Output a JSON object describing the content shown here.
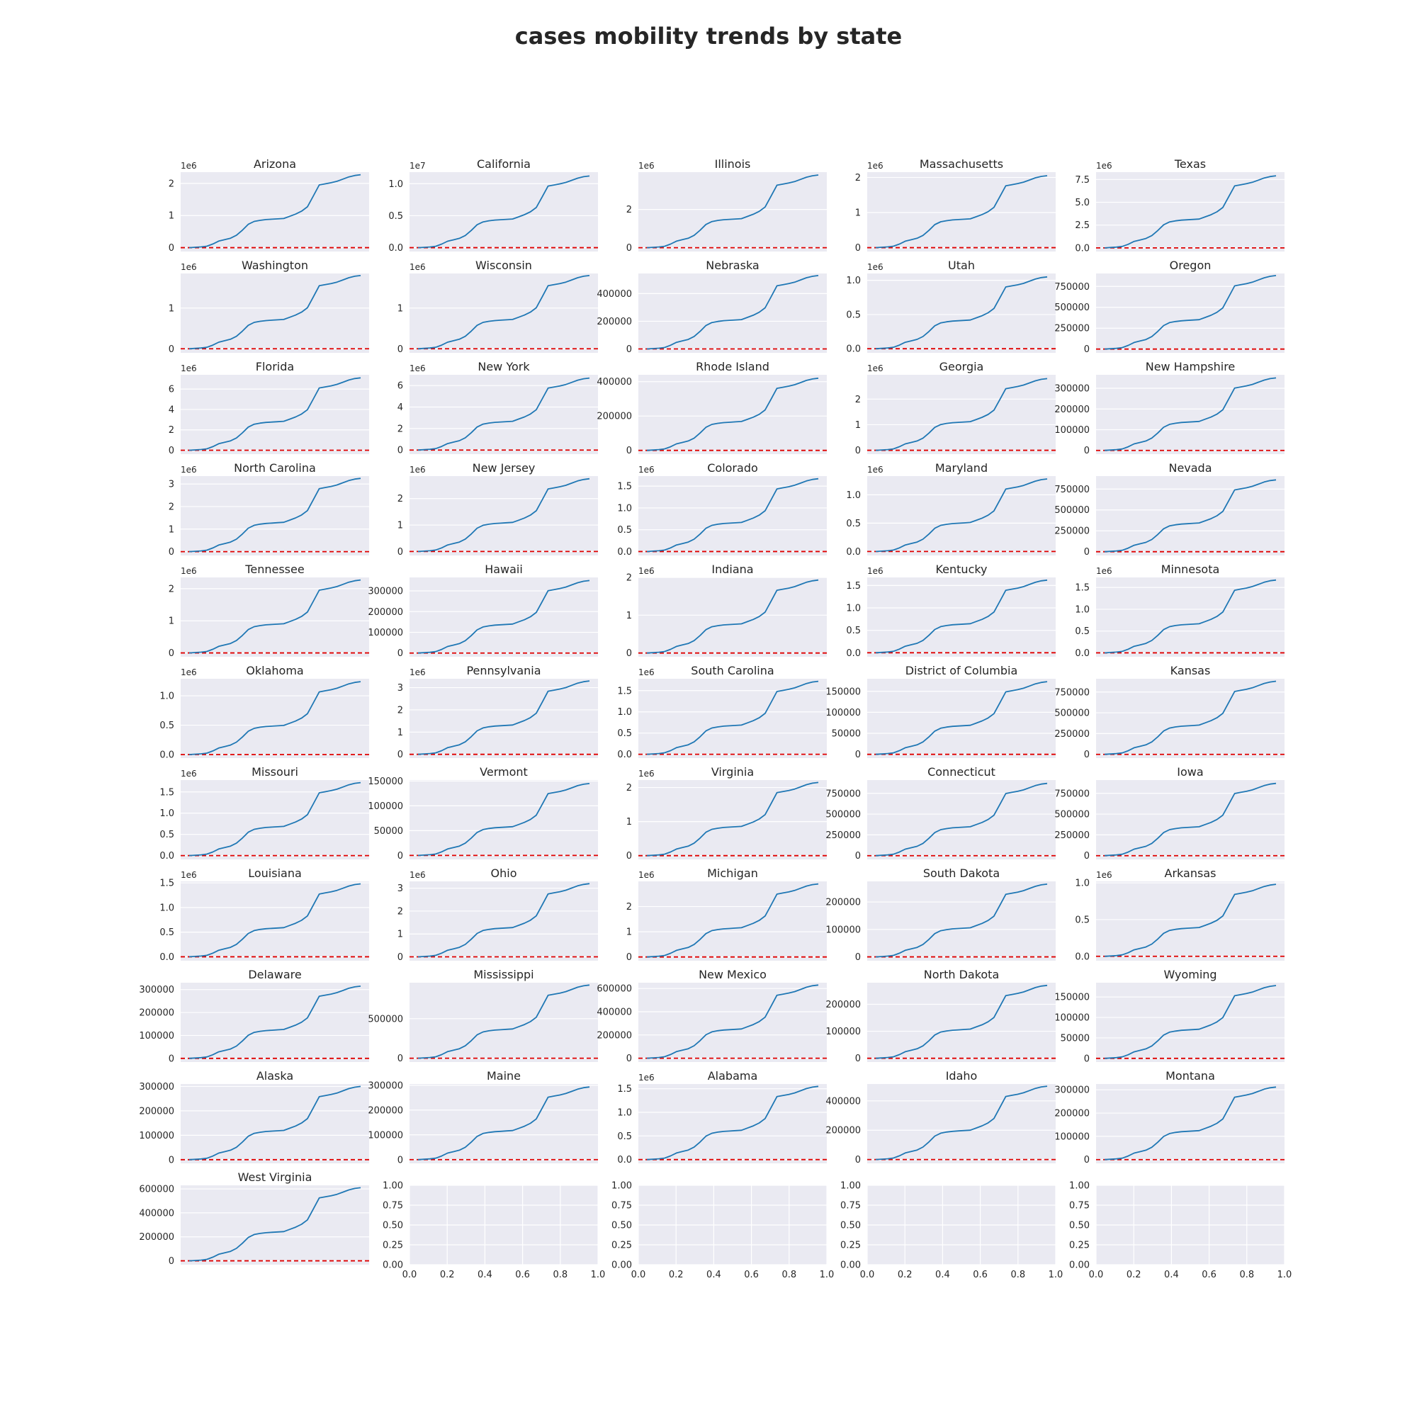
{
  "title": "cases mobility trends by state",
  "chart_data": {
    "type": "line",
    "layout": "small-multiples-grid",
    "grid": true,
    "reference_line": {
      "y": 0,
      "color": "#e00000",
      "style": "dashed"
    },
    "line_color": "#1f77b4",
    "panels": [
      {
        "title": "Arizona",
        "multiplier": "1e6",
        "yticks": [
          "0",
          "1",
          "2"
        ],
        "tick_values": [
          0,
          1,
          2
        ],
        "ylim": [
          -0.12,
          2.35
        ],
        "final": 2.27
      },
      {
        "title": "California",
        "multiplier": "1e7",
        "yticks": [
          "0.0",
          "0.5",
          "1.0"
        ],
        "tick_values": [
          0,
          0.5,
          1.0
        ],
        "ylim": [
          -0.06,
          1.18
        ],
        "final": 1.12
      },
      {
        "title": "Illinois",
        "multiplier": "1e6",
        "yticks": [
          "0",
          "2"
        ],
        "tick_values": [
          0,
          2
        ],
        "ylim": [
          -0.2,
          3.95
        ],
        "final": 3.8
      },
      {
        "title": "Massachusetts",
        "multiplier": "1e6",
        "yticks": [
          "0",
          "1",
          "2"
        ],
        "tick_values": [
          0,
          1,
          2
        ],
        "ylim": [
          -0.11,
          2.15
        ],
        "final": 2.05
      },
      {
        "title": "Texas",
        "multiplier": "1e6",
        "yticks": [
          "0.0",
          "2.5",
          "5.0",
          "7.5"
        ],
        "tick_values": [
          0,
          2.5,
          5.0,
          7.5
        ],
        "ylim": [
          -0.4,
          8.3
        ],
        "final": 7.9
      },
      {
        "title": "Washington",
        "multiplier": "1e6",
        "yticks": [
          "0",
          "1"
        ],
        "tick_values": [
          0,
          1
        ],
        "ylim": [
          -0.1,
          1.85
        ],
        "final": 1.8
      },
      {
        "title": "Wisconsin",
        "multiplier": "1e6",
        "yticks": [
          "0",
          "1"
        ],
        "tick_values": [
          0,
          1
        ],
        "ylim": [
          -0.1,
          1.85
        ],
        "final": 1.8
      },
      {
        "title": "Nebraska",
        "multiplier": "",
        "yticks": [
          "0",
          "200000",
          "400000"
        ],
        "tick_values": [
          0,
          200000,
          400000
        ],
        "ylim": [
          -28000,
          545000
        ],
        "final": 530000
      },
      {
        "title": "Utah",
        "multiplier": "1e6",
        "yticks": [
          "0.0",
          "0.5",
          "1.0"
        ],
        "tick_values": [
          0,
          0.5,
          1.0
        ],
        "ylim": [
          -0.06,
          1.1
        ],
        "final": 1.05
      },
      {
        "title": "Oregon",
        "multiplier": "",
        "yticks": [
          "0",
          "250000",
          "500000",
          "750000"
        ],
        "tick_values": [
          0,
          250000,
          500000,
          750000
        ],
        "ylim": [
          -45000,
          905000
        ],
        "final": 880000
      },
      {
        "title": "Florida",
        "multiplier": "1e6",
        "yticks": [
          "0",
          "2",
          "4",
          "6"
        ],
        "tick_values": [
          0,
          2,
          4,
          6
        ],
        "ylim": [
          -0.38,
          7.4
        ],
        "final": 7.1
      },
      {
        "title": "New York",
        "multiplier": "1e6",
        "yticks": [
          "0",
          "2",
          "4",
          "6"
        ],
        "tick_values": [
          0,
          2,
          4,
          6
        ],
        "ylim": [
          -0.38,
          7.0
        ],
        "final": 6.7
      },
      {
        "title": "Rhode Island",
        "multiplier": "",
        "yticks": [
          "0",
          "200000",
          "400000"
        ],
        "tick_values": [
          0,
          200000,
          400000
        ],
        "ylim": [
          -22000,
          440000
        ],
        "final": 420000
      },
      {
        "title": "Georgia",
        "multiplier": "1e6",
        "yticks": [
          "0",
          "1",
          "2"
        ],
        "tick_values": [
          0,
          1,
          2
        ],
        "ylim": [
          -0.15,
          2.95
        ],
        "final": 2.8
      },
      {
        "title": "New Hampshire",
        "multiplier": "",
        "yticks": [
          "0",
          "100000",
          "200000",
          "300000"
        ],
        "tick_values": [
          0,
          100000,
          200000,
          300000
        ],
        "ylim": [
          -18000,
          365000
        ],
        "final": 350000
      },
      {
        "title": "North Carolina",
        "multiplier": "1e6",
        "yticks": [
          "0",
          "1",
          "2",
          "3"
        ],
        "tick_values": [
          0,
          1,
          2,
          3
        ],
        "ylim": [
          -0.17,
          3.35
        ],
        "final": 3.25
      },
      {
        "title": "New Jersey",
        "multiplier": "1e6",
        "yticks": [
          "0",
          "1",
          "2"
        ],
        "tick_values": [
          0,
          1,
          2
        ],
        "ylim": [
          -0.15,
          2.85
        ],
        "final": 2.75
      },
      {
        "title": "Colorado",
        "multiplier": "1e6",
        "yticks": [
          "0.0",
          "0.5",
          "1.0",
          "1.5"
        ],
        "tick_values": [
          0,
          0.5,
          1.0,
          1.5
        ],
        "ylim": [
          -0.09,
          1.73
        ],
        "final": 1.67
      },
      {
        "title": "Maryland",
        "multiplier": "1e6",
        "yticks": [
          "0.0",
          "0.5",
          "1.0"
        ],
        "tick_values": [
          0,
          0.5,
          1.0
        ],
        "ylim": [
          -0.07,
          1.33
        ],
        "final": 1.28
      },
      {
        "title": "Nevada",
        "multiplier": "",
        "yticks": [
          "0",
          "250000",
          "500000",
          "750000"
        ],
        "tick_values": [
          0,
          250000,
          500000,
          750000
        ],
        "ylim": [
          -45000,
          905000
        ],
        "final": 860000
      },
      {
        "title": "Tennessee",
        "multiplier": "1e6",
        "yticks": [
          "0",
          "1",
          "2"
        ],
        "tick_values": [
          0,
          1,
          2
        ],
        "ylim": [
          -0.12,
          2.35
        ],
        "final": 2.27
      },
      {
        "title": "Hawaii",
        "multiplier": "",
        "yticks": [
          "0",
          "100000",
          "200000",
          "300000"
        ],
        "tick_values": [
          0,
          100000,
          200000,
          300000
        ],
        "ylim": [
          -18000,
          365000
        ],
        "final": 350000
      },
      {
        "title": "Indiana",
        "multiplier": "1e6",
        "yticks": [
          "0",
          "1",
          "2"
        ],
        "tick_values": [
          0,
          1,
          2
        ],
        "ylim": [
          -0.1,
          2.0
        ],
        "final": 1.93
      },
      {
        "title": "Kentucky",
        "multiplier": "1e6",
        "yticks": [
          "0.0",
          "0.5",
          "1.0",
          "1.5"
        ],
        "tick_values": [
          0,
          0.5,
          1.0,
          1.5
        ],
        "ylim": [
          -0.09,
          1.68
        ],
        "final": 1.62
      },
      {
        "title": "Minnesota",
        "multiplier": "1e6",
        "yticks": [
          "0.0",
          "0.5",
          "1.0",
          "1.5"
        ],
        "tick_values": [
          0,
          0.5,
          1.0,
          1.5
        ],
        "ylim": [
          -0.09,
          1.73
        ],
        "final": 1.67
      },
      {
        "title": "Oklahoma",
        "multiplier": "1e6",
        "yticks": [
          "0.0",
          "0.5",
          "1.0"
        ],
        "tick_values": [
          0,
          0.5,
          1.0
        ],
        "ylim": [
          -0.06,
          1.29
        ],
        "final": 1.24
      },
      {
        "title": "Pennsylvania",
        "multiplier": "1e6",
        "yticks": [
          "0",
          "1",
          "2",
          "3"
        ],
        "tick_values": [
          0,
          1,
          2,
          3
        ],
        "ylim": [
          -0.17,
          3.4
        ],
        "final": 3.3
      },
      {
        "title": "South Carolina",
        "multiplier": "1e6",
        "yticks": [
          "0.0",
          "0.5",
          "1.0",
          "1.5"
        ],
        "tick_values": [
          0,
          0.5,
          1.0,
          1.5
        ],
        "ylim": [
          -0.09,
          1.78
        ],
        "final": 1.72
      },
      {
        "title": "District of Columbia",
        "multiplier": "",
        "yticks": [
          "0",
          "50000",
          "100000",
          "150000"
        ],
        "tick_values": [
          0,
          50000,
          100000,
          150000
        ],
        "ylim": [
          -9000,
          180000
        ],
        "final": 173000
      },
      {
        "title": "Kansas",
        "multiplier": "",
        "yticks": [
          "0",
          "250000",
          "500000",
          "750000"
        ],
        "tick_values": [
          0,
          250000,
          500000,
          750000
        ],
        "ylim": [
          -45000,
          910000
        ],
        "final": 880000
      },
      {
        "title": "Missouri",
        "multiplier": "1e6",
        "yticks": [
          "0.0",
          "0.5",
          "1.0",
          "1.5"
        ],
        "tick_values": [
          0,
          0.5,
          1.0,
          1.5
        ],
        "ylim": [
          -0.09,
          1.78
        ],
        "final": 1.72
      },
      {
        "title": "Vermont",
        "multiplier": "",
        "yticks": [
          "0",
          "50000",
          "100000",
          "150000"
        ],
        "tick_values": [
          0,
          50000,
          100000,
          150000
        ],
        "ylim": [
          -8000,
          152000
        ],
        "final": 145000
      },
      {
        "title": "Virginia",
        "multiplier": "1e6",
        "yticks": [
          "0",
          "1",
          "2"
        ],
        "tick_values": [
          0,
          1,
          2
        ],
        "ylim": [
          -0.11,
          2.22
        ],
        "final": 2.15
      },
      {
        "title": "Connecticut",
        "multiplier": "",
        "yticks": [
          "0",
          "250000",
          "500000",
          "750000"
        ],
        "tick_values": [
          0,
          250000,
          500000,
          750000
        ],
        "ylim": [
          -45000,
          910000
        ],
        "final": 870000
      },
      {
        "title": "Iowa",
        "multiplier": "",
        "yticks": [
          "0",
          "250000",
          "500000",
          "750000"
        ],
        "tick_values": [
          0,
          250000,
          500000,
          750000
        ],
        "ylim": [
          -45000,
          910000
        ],
        "final": 870000
      },
      {
        "title": "Louisiana",
        "multiplier": "1e6",
        "yticks": [
          "0.0",
          "0.5",
          "1.0",
          "1.5"
        ],
        "tick_values": [
          0,
          0.5,
          1.0,
          1.5
        ],
        "ylim": [
          -0.08,
          1.53
        ],
        "final": 1.48
      },
      {
        "title": "Ohio",
        "multiplier": "1e6",
        "yticks": [
          "0",
          "1",
          "2",
          "3"
        ],
        "tick_values": [
          0,
          1,
          2,
          3
        ],
        "ylim": [
          -0.17,
          3.3
        ],
        "final": 3.2
      },
      {
        "title": "Michigan",
        "multiplier": "1e6",
        "yticks": [
          "0",
          "1",
          "2"
        ],
        "tick_values": [
          0,
          1,
          2
        ],
        "ylim": [
          -0.15,
          3.0
        ],
        "final": 2.9
      },
      {
        "title": "South Dakota",
        "multiplier": "",
        "yticks": [
          "0",
          "100000",
          "200000"
        ],
        "tick_values": [
          0,
          100000,
          200000
        ],
        "ylim": [
          -14000,
          275000
        ],
        "final": 265000
      },
      {
        "title": "Arkansas",
        "multiplier": "1e6",
        "yticks": [
          "0.0",
          "0.5",
          "1.0"
        ],
        "tick_values": [
          0,
          0.5,
          1.0
        ],
        "ylim": [
          -0.06,
          1.02
        ],
        "final": 0.98
      },
      {
        "title": "Delaware",
        "multiplier": "",
        "yticks": [
          "0",
          "100000",
          "200000",
          "300000"
        ],
        "tick_values": [
          0,
          100000,
          200000,
          300000
        ],
        "ylim": [
          -16000,
          330000
        ],
        "final": 315000
      },
      {
        "title": "Mississippi",
        "multiplier": "",
        "yticks": [
          "0",
          "500000"
        ],
        "tick_values": [
          0,
          500000
        ],
        "ylim": [
          -48000,
          955000
        ],
        "final": 925000
      },
      {
        "title": "New Mexico",
        "multiplier": "",
        "yticks": [
          "0",
          "200000",
          "400000",
          "600000"
        ],
        "tick_values": [
          0,
          200000,
          400000,
          600000
        ],
        "ylim": [
          -33000,
          650000
        ],
        "final": 630000
      },
      {
        "title": "North Dakota",
        "multiplier": "",
        "yticks": [
          "0",
          "100000",
          "200000"
        ],
        "tick_values": [
          0,
          100000,
          200000
        ],
        "ylim": [
          -14000,
          280000
        ],
        "final": 270000
      },
      {
        "title": "Wyoming",
        "multiplier": "",
        "yticks": [
          "0",
          "50000",
          "100000",
          "150000"
        ],
        "tick_values": [
          0,
          50000,
          100000,
          150000
        ],
        "ylim": [
          -9000,
          185000
        ],
        "final": 178000
      },
      {
        "title": "Alaska",
        "multiplier": "",
        "yticks": [
          "0",
          "100000",
          "200000",
          "300000"
        ],
        "tick_values": [
          0,
          100000,
          200000,
          300000
        ],
        "ylim": [
          -15000,
          310000
        ],
        "final": 300000
      },
      {
        "title": "Maine",
        "multiplier": "",
        "yticks": [
          "0",
          "100000",
          "200000",
          "300000"
        ],
        "tick_values": [
          0,
          100000,
          200000,
          300000
        ],
        "ylim": [
          -15000,
          305000
        ],
        "final": 293000
      },
      {
        "title": "Alabama",
        "multiplier": "1e6",
        "yticks": [
          "0.0",
          "0.5",
          "1.0",
          "1.5"
        ],
        "tick_values": [
          0,
          0.5,
          1.0,
          1.5
        ],
        "ylim": [
          -0.08,
          1.6
        ],
        "final": 1.55
      },
      {
        "title": "Idaho",
        "multiplier": "",
        "yticks": [
          "0",
          "200000",
          "400000"
        ],
        "tick_values": [
          0,
          200000,
          400000
        ],
        "ylim": [
          -26000,
          515000
        ],
        "final": 500000
      },
      {
        "title": "Montana",
        "multiplier": "",
        "yticks": [
          "0",
          "100000",
          "200000",
          "300000"
        ],
        "tick_values": [
          0,
          100000,
          200000,
          300000
        ],
        "ylim": [
          -16000,
          325000
        ],
        "final": 312000
      },
      {
        "title": "West Virginia",
        "multiplier": "",
        "yticks": [
          "0",
          "200000",
          "400000",
          "600000"
        ],
        "tick_values": [
          0,
          200000,
          400000,
          600000
        ],
        "ylim": [
          -32000,
          630000
        ],
        "final": 610000
      }
    ],
    "empty_panels": {
      "count": 4,
      "xticks": [
        "0.0",
        "0.2",
        "0.4",
        "0.6",
        "0.8",
        "1.0"
      ],
      "yticks": [
        "0.00",
        "0.25",
        "0.50",
        "0.75",
        "1.00"
      ]
    },
    "curve_shape_fraction_of_final": [
      0,
      0.005,
      0.01,
      0.02,
      0.05,
      0.09,
      0.11,
      0.13,
      0.17,
      0.24,
      0.32,
      0.36,
      0.375,
      0.385,
      0.39,
      0.395,
      0.4,
      0.43,
      0.46,
      0.5,
      0.56,
      0.71,
      0.86,
      0.875,
      0.89,
      0.91,
      0.94,
      0.97,
      0.99,
      1.0
    ]
  }
}
